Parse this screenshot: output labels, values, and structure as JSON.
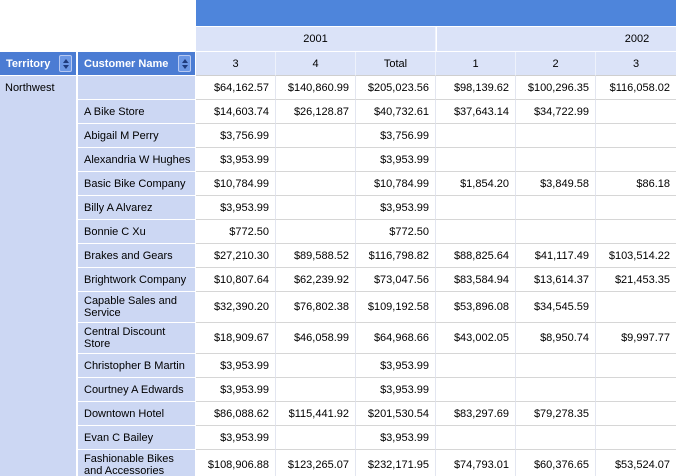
{
  "report_table": {
    "corner": {
      "territory_label": "Territory",
      "customer_label": "Customer Name"
    },
    "year_groups": [
      {
        "label": "2001"
      },
      {
        "label": "2002"
      }
    ],
    "column_headers": [
      "3",
      "4",
      "Total",
      "1",
      "2",
      "3"
    ],
    "territory_group": "Northwest",
    "rows": [
      {
        "customer": "",
        "values": [
          "$64,162.57",
          "$140,860.99",
          "$205,023.56",
          "$98,139.62",
          "$100,296.35",
          "$116,058.02"
        ]
      },
      {
        "customer": "A Bike Store",
        "values": [
          "$14,603.74",
          "$26,128.87",
          "$40,732.61",
          "$37,643.14",
          "$34,722.99",
          ""
        ]
      },
      {
        "customer": "Abigail M Perry",
        "values": [
          "$3,756.99",
          "",
          "$3,756.99",
          "",
          "",
          ""
        ]
      },
      {
        "customer": "Alexandria W Hughes",
        "values": [
          "$3,953.99",
          "",
          "$3,953.99",
          "",
          "",
          ""
        ]
      },
      {
        "customer": "Basic Bike Company",
        "values": [
          "$10,784.99",
          "",
          "$10,784.99",
          "$1,854.20",
          "$3,849.58",
          "$86.18"
        ]
      },
      {
        "customer": "Billy A Alvarez",
        "values": [
          "$3,953.99",
          "",
          "$3,953.99",
          "",
          "",
          ""
        ]
      },
      {
        "customer": "Bonnie C Xu",
        "values": [
          "$772.50",
          "",
          "$772.50",
          "",
          "",
          ""
        ]
      },
      {
        "customer": "Brakes and Gears",
        "values": [
          "$27,210.30",
          "$89,588.52",
          "$116,798.82",
          "$88,825.64",
          "$41,117.49",
          "$103,514.22"
        ]
      },
      {
        "customer": "Brightwork Company",
        "values": [
          "$10,807.64",
          "$62,239.92",
          "$73,047.56",
          "$83,584.94",
          "$13,614.37",
          "$21,453.35"
        ]
      },
      {
        "customer": "Capable Sales and Service",
        "values": [
          "$32,390.20",
          "$76,802.38",
          "$109,192.58",
          "$53,896.08",
          "$34,545.59",
          ""
        ]
      },
      {
        "customer": "Central Discount Store",
        "values": [
          "$18,909.67",
          "$46,058.99",
          "$64,968.66",
          "$43,002.05",
          "$8,950.74",
          "$9,997.77"
        ]
      },
      {
        "customer": "Christopher B Martin",
        "values": [
          "$3,953.99",
          "",
          "$3,953.99",
          "",
          "",
          ""
        ]
      },
      {
        "customer": "Courtney A Edwards",
        "values": [
          "$3,953.99",
          "",
          "$3,953.99",
          "",
          "",
          ""
        ]
      },
      {
        "customer": "Downtown Hotel",
        "values": [
          "$86,088.62",
          "$115,441.92",
          "$201,530.54",
          "$83,297.69",
          "$79,278.35",
          ""
        ]
      },
      {
        "customer": "Evan C Bailey",
        "values": [
          "$3,953.99",
          "",
          "$3,953.99",
          "",
          "",
          ""
        ]
      },
      {
        "customer": "Fashionable Bikes and Accessories",
        "values": [
          "$108,906.88",
          "$123,265.07",
          "$232,171.95",
          "$74,793.01",
          "$60,376.65",
          "$53,524.07"
        ]
      }
    ]
  },
  "colors": {
    "banner_blue": "#4e85db",
    "header_blue": "#4b7cd3",
    "light_header_bg": "#dbe3f8",
    "row_header_bg": "#ccd7f3",
    "grid_horizontal": "#d6d6d6",
    "grid_vertical": "#e3e6f0",
    "sort_button_bg": "#6b96e4",
    "sort_arrow": "#1e3a7d"
  }
}
